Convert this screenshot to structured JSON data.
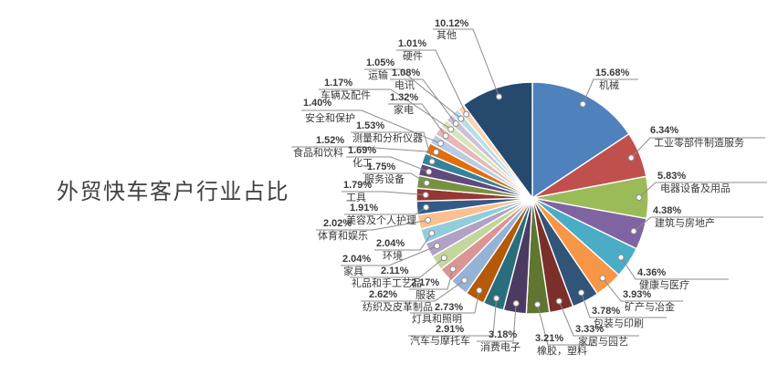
{
  "title": "外贸快车客户行业占比",
  "chart_data": {
    "type": "pie",
    "title": "外贸快车客户行业占比",
    "unit": "percent",
    "direction": "clockwise",
    "start_angle_deg": 0,
    "legend_position": "none",
    "label_style": "callout with leader line, percent above category name",
    "slices": [
      {
        "label": "机械",
        "value": 15.68,
        "color": "#4F81BD"
      },
      {
        "label": "工业零部件制造服务",
        "value": 6.34,
        "color": "#C0504D"
      },
      {
        "label": "电器设备及用品",
        "value": 5.83,
        "color": "#9BBB59"
      },
      {
        "label": "建筑与房地产",
        "value": 4.38,
        "color": "#8064A2"
      },
      {
        "label": "健康与医疗",
        "value": 4.36,
        "color": "#4BACC6"
      },
      {
        "label": "矿产与冶金",
        "value": 3.93,
        "color": "#F79646"
      },
      {
        "label": "包装与印刷",
        "value": 3.78,
        "color": "#305578"
      },
      {
        "label": "家居与园艺",
        "value": 3.33,
        "color": "#7B2F2B"
      },
      {
        "label": "橡胶，塑料",
        "value": 3.21,
        "color": "#5F7530"
      },
      {
        "label": "消费电子",
        "value": 3.18,
        "color": "#4B3A62"
      },
      {
        "label": "汽车与摩托车",
        "value": 2.91,
        "color": "#2A6E7E"
      },
      {
        "label": "灯具和照明",
        "value": 2.73,
        "color": "#B55A08"
      },
      {
        "label": "纺织及皮革制品",
        "value": 2.62,
        "color": "#95B3D7"
      },
      {
        "label": "服装",
        "value": 2.17,
        "color": "#D99694"
      },
      {
        "label": "礼品和手工艺品",
        "value": 2.11,
        "color": "#C3D69B"
      },
      {
        "label": "家具",
        "value": 2.04,
        "color": "#B2A1C7"
      },
      {
        "label": "环境",
        "value": 2.04,
        "color": "#92CDDC"
      },
      {
        "label": "体育和娱乐",
        "value": 2.02,
        "color": "#FAC090"
      },
      {
        "label": "美容及个人护理",
        "value": 1.91,
        "color": "#345A86"
      },
      {
        "label": "工具",
        "value": 1.79,
        "color": "#953735"
      },
      {
        "label": "服务设备",
        "value": 1.75,
        "color": "#76923F"
      },
      {
        "label": "化工",
        "value": 1.69,
        "color": "#5F4A7B"
      },
      {
        "label": "测量和分析仪器",
        "value": 1.53,
        "color": "#35829B"
      },
      {
        "label": "食品和饮料",
        "value": 1.52,
        "color": "#E46C0A"
      },
      {
        "label": "安全和保护",
        "value": 1.4,
        "color": "#B8CCE4"
      },
      {
        "label": "家电",
        "value": 1.32,
        "color": "#E6B8B7"
      },
      {
        "label": "车辆及配件",
        "value": 1.17,
        "color": "#D7E4BD"
      },
      {
        "label": "电讯",
        "value": 1.08,
        "color": "#CCC1D9"
      },
      {
        "label": "运输",
        "value": 1.05,
        "color": "#B7DEE8"
      },
      {
        "label": "硬件",
        "value": 1.01,
        "color": "#FCD5B4"
      },
      {
        "label": "其他",
        "value": 10.12,
        "color": "#264A6E"
      }
    ]
  }
}
